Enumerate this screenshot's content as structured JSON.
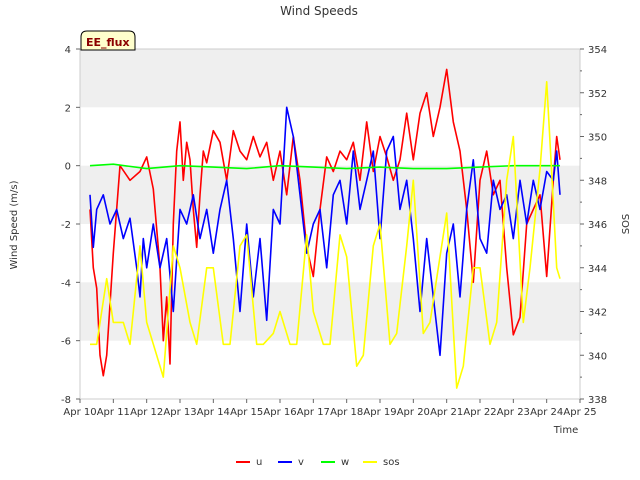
{
  "chart_data": {
    "type": "line",
    "title": "Wind Speeds",
    "badge": "EE_flux",
    "xlabel": "Time",
    "ylabel": "Wind Speed (m/s)",
    "y2label": "SOS",
    "xlim": [
      0,
      15
    ],
    "ylim": [
      -8,
      4
    ],
    "y2lim": [
      338,
      354
    ],
    "x_ticks": [
      0,
      1,
      2,
      3,
      4,
      5,
      6,
      7,
      8,
      9,
      10,
      11,
      12,
      13,
      14,
      15
    ],
    "x_tick_labels": [
      "Apr 10",
      "Apr 11",
      "Apr 12",
      "Apr 13",
      "Apr 14",
      "Apr 15",
      "Apr 16",
      "Apr 17",
      "Apr 18",
      "Apr 19",
      "Apr 20",
      "Apr 21",
      "Apr 22",
      "Apr 23",
      "Apr 24",
      "Apr 25"
    ],
    "y_ticks": [
      -8,
      -6,
      -4,
      -2,
      0,
      2,
      4
    ],
    "y_tick_labels": [
      "-8",
      "-6",
      "-4",
      "-2",
      "0",
      "2",
      "4"
    ],
    "y2_ticks": [
      338,
      340,
      342,
      344,
      346,
      348,
      350,
      352,
      354
    ],
    "y2_tick_labels": [
      "338",
      "340",
      "342",
      "344",
      "346",
      "348",
      "350",
      "352",
      "354"
    ],
    "bands": [
      [
        2,
        4
      ],
      [
        -2,
        0
      ],
      [
        -6,
        -4
      ]
    ],
    "colors": {
      "band": "#efefef",
      "u": "#ff0000",
      "v": "#0000ff",
      "w": "#00ff00",
      "sos": "#ffff00"
    },
    "series": [
      {
        "name": "u",
        "axis": "left",
        "color": "#ff0000",
        "x": [
          0.3,
          0.4,
          0.5,
          0.6,
          0.7,
          0.8,
          1.0,
          1.2,
          1.5,
          1.8,
          2.0,
          2.2,
          2.4,
          2.5,
          2.6,
          2.7,
          2.8,
          2.9,
          3.0,
          3.1,
          3.2,
          3.3,
          3.4,
          3.5,
          3.6,
          3.7,
          3.8,
          4.0,
          4.2,
          4.4,
          4.6,
          4.8,
          5.0,
          5.2,
          5.4,
          5.6,
          5.8,
          6.0,
          6.2,
          6.4,
          6.6,
          6.8,
          7.0,
          7.2,
          7.4,
          7.6,
          7.8,
          8.0,
          8.2,
          8.4,
          8.6,
          8.8,
          9.0,
          9.2,
          9.4,
          9.6,
          9.8,
          10.0,
          10.2,
          10.4,
          10.6,
          10.8,
          11.0,
          11.2,
          11.4,
          11.6,
          11.8,
          12.0,
          12.2,
          12.4,
          12.6,
          12.8,
          13.0,
          13.2,
          13.4,
          13.6,
          13.8,
          14.0,
          14.2,
          14.3,
          14.4
        ],
        "y": [
          -1.5,
          -3.5,
          -4.2,
          -6.5,
          -7.2,
          -6.5,
          -3.0,
          0.0,
          -0.5,
          -0.2,
          0.3,
          -0.8,
          -3.5,
          -6.0,
          -4.5,
          -6.8,
          -2.0,
          0.5,
          1.5,
          -0.5,
          0.8,
          0.2,
          -1.5,
          -2.8,
          -1.0,
          0.5,
          0.1,
          1.2,
          0.8,
          -0.5,
          1.2,
          0.5,
          0.2,
          1.0,
          0.3,
          0.8,
          -0.5,
          0.5,
          -1.0,
          1.0,
          -0.5,
          -2.8,
          -3.8,
          -1.5,
          0.3,
          -0.2,
          0.5,
          0.2,
          0.8,
          -0.5,
          1.5,
          -0.2,
          1.0,
          0.3,
          -0.5,
          0.2,
          1.8,
          0.2,
          1.8,
          2.5,
          1.0,
          2.0,
          3.3,
          1.5,
          0.5,
          -1.5,
          -4.0,
          -0.5,
          0.5,
          -1.0,
          -0.5,
          -3.5,
          -5.8,
          -5.2,
          -2.0,
          -1.5,
          -1.0,
          -3.8,
          -0.5,
          1.0,
          0.2
        ]
      },
      {
        "name": "v",
        "axis": "left",
        "color": "#0000ff",
        "x": [
          0.3,
          0.4,
          0.5,
          0.7,
          0.9,
          1.1,
          1.3,
          1.5,
          1.7,
          1.8,
          1.9,
          2.0,
          2.2,
          2.4,
          2.6,
          2.8,
          3.0,
          3.2,
          3.4,
          3.6,
          3.8,
          4.0,
          4.2,
          4.4,
          4.6,
          4.8,
          5.0,
          5.2,
          5.4,
          5.6,
          5.8,
          6.0,
          6.2,
          6.4,
          6.6,
          6.8,
          7.0,
          7.2,
          7.4,
          7.6,
          7.8,
          8.0,
          8.2,
          8.4,
          8.6,
          8.8,
          9.0,
          9.2,
          9.4,
          9.6,
          9.8,
          10.0,
          10.2,
          10.4,
          10.6,
          10.8,
          11.0,
          11.2,
          11.4,
          11.6,
          11.8,
          12.0,
          12.2,
          12.4,
          12.6,
          12.8,
          13.0,
          13.2,
          13.4,
          13.6,
          13.8,
          14.0,
          14.2,
          14.3,
          14.4
        ],
        "y": [
          -1.0,
          -2.8,
          -1.5,
          -1.0,
          -2.0,
          -1.5,
          -2.5,
          -1.8,
          -3.5,
          -4.5,
          -2.5,
          -3.5,
          -2.0,
          -3.5,
          -2.5,
          -5.0,
          -1.5,
          -2.0,
          -1.0,
          -2.5,
          -1.5,
          -3.0,
          -1.5,
          -0.5,
          -2.5,
          -5.0,
          -2.0,
          -4.5,
          -2.5,
          -5.3,
          -1.5,
          -2.0,
          2.0,
          1.0,
          -1.0,
          -3.0,
          -2.0,
          -1.5,
          -3.5,
          -1.0,
          -0.5,
          -2.0,
          0.5,
          -1.5,
          -0.5,
          0.5,
          -2.5,
          0.5,
          1.0,
          -1.5,
          -0.5,
          -2.5,
          -5.0,
          -2.5,
          -4.5,
          -6.5,
          -3.0,
          -2.0,
          -4.5,
          -1.5,
          0.2,
          -2.5,
          -3.0,
          -0.5,
          -1.5,
          -1.0,
          -2.5,
          -0.5,
          -2.0,
          -0.5,
          -1.5,
          -0.2,
          -0.5,
          0.5,
          -1.0
        ]
      },
      {
        "name": "w",
        "axis": "left",
        "color": "#00ff00",
        "x": [
          0.3,
          1.0,
          2.0,
          3.0,
          4.0,
          5.0,
          6.0,
          7.0,
          8.0,
          9.0,
          10.0,
          11.0,
          12.0,
          13.0,
          14.0,
          14.4
        ],
        "y": [
          0.0,
          0.05,
          -0.1,
          0.0,
          -0.05,
          -0.1,
          0.0,
          -0.05,
          -0.1,
          -0.05,
          -0.1,
          -0.1,
          -0.05,
          0.0,
          0.0,
          0.0
        ]
      },
      {
        "name": "sos",
        "axis": "right",
        "color": "#ffff00",
        "x": [
          0.3,
          0.5,
          0.8,
          1.0,
          1.3,
          1.5,
          1.8,
          2.0,
          2.3,
          2.5,
          2.8,
          3.0,
          3.3,
          3.5,
          3.8,
          4.0,
          4.3,
          4.5,
          4.8,
          5.0,
          5.3,
          5.5,
          5.8,
          6.0,
          6.3,
          6.5,
          6.8,
          7.0,
          7.3,
          7.5,
          7.8,
          8.0,
          8.3,
          8.5,
          8.8,
          9.0,
          9.3,
          9.5,
          9.8,
          10.0,
          10.3,
          10.5,
          10.8,
          11.0,
          11.3,
          11.5,
          11.8,
          12.0,
          12.3,
          12.5,
          12.8,
          13.0,
          13.3,
          13.5,
          13.8,
          14.0,
          14.2,
          14.3,
          14.4
        ],
        "y": [
          340.5,
          340.5,
          343.5,
          341.5,
          341.5,
          340.5,
          345.0,
          341.5,
          340.0,
          339.0,
          345.0,
          344.0,
          341.5,
          340.5,
          344.0,
          344.0,
          340.5,
          340.5,
          345.0,
          345.5,
          340.5,
          340.5,
          341.0,
          342.0,
          340.5,
          340.5,
          345.5,
          342.0,
          340.5,
          340.5,
          345.5,
          344.5,
          339.5,
          340.0,
          345.0,
          346.0,
          340.5,
          341.0,
          345.0,
          348.0,
          341.0,
          341.5,
          344.5,
          346.5,
          338.5,
          339.5,
          344.0,
          344.0,
          340.5,
          341.5,
          348.0,
          350.0,
          341.5,
          344.0,
          348.5,
          352.5,
          347.0,
          344.0,
          343.5
        ]
      }
    ]
  }
}
